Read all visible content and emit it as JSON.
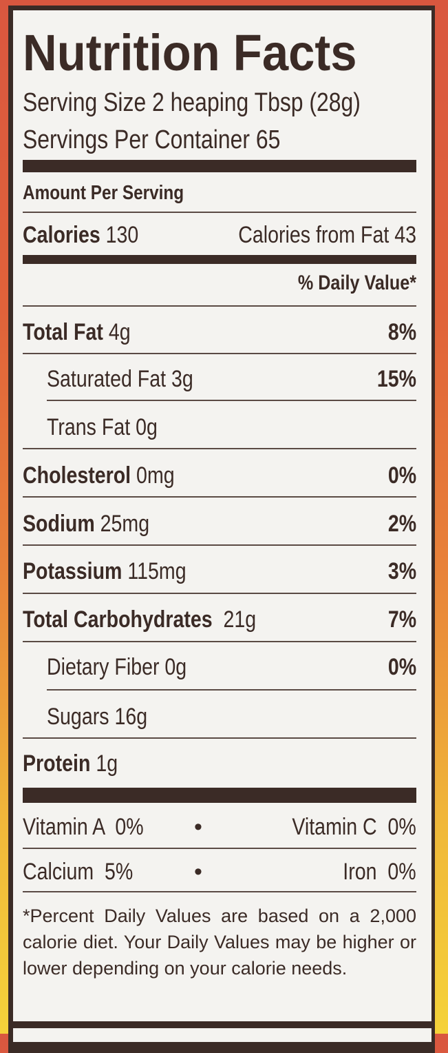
{
  "title": "Nutrition Facts",
  "serving_size": "Serving Size 2 heaping Tbsp (28g)",
  "servings_per_container": "Servings Per Container 65",
  "amount_per_serving": "Amount Per Serving",
  "calories": {
    "label": "Calories",
    "value": "130",
    "from_fat_label": "Calories from Fat",
    "from_fat_value": "43"
  },
  "daily_value_header": "% Daily Value*",
  "nutrients": [
    {
      "name": "Total Fat",
      "amount": "4g",
      "dv": "8%"
    },
    {
      "name": "Saturated Fat",
      "amount": "3g",
      "dv": "15%"
    },
    {
      "name": "Trans Fat",
      "amount": "0g",
      "dv": ""
    },
    {
      "name": "Cholesterol",
      "amount": "0mg",
      "dv": "0%"
    },
    {
      "name": "Sodium",
      "amount": "25mg",
      "dv": "2%"
    },
    {
      "name": "Potassium",
      "amount": "115mg",
      "dv": "3%"
    },
    {
      "name": "Total Carbohydrates",
      "amount": "21g",
      "dv": "7%"
    },
    {
      "name": "Dietary Fiber",
      "amount": "0g",
      "dv": "0%"
    },
    {
      "name": "Sugars",
      "amount": "16g",
      "dv": ""
    },
    {
      "name": "Protein",
      "amount": "1g",
      "dv": ""
    }
  ],
  "vitamins": [
    {
      "left": "Vitamin A  0%",
      "right": "Vitamin C  0%"
    },
    {
      "left": "Calcium  5%",
      "right": "Iron  0%"
    }
  ],
  "bullet": "•",
  "footnote": "*Percent Daily Values are based on a 2,000 calorie diet. Your Daily Values may be higher or lower depending on your calorie needs.",
  "colors": {
    "ink": "#3b2b26",
    "panel": "#f4f3f0",
    "background_top": "#d9573f",
    "background_bottom": "#f5d23a"
  }
}
